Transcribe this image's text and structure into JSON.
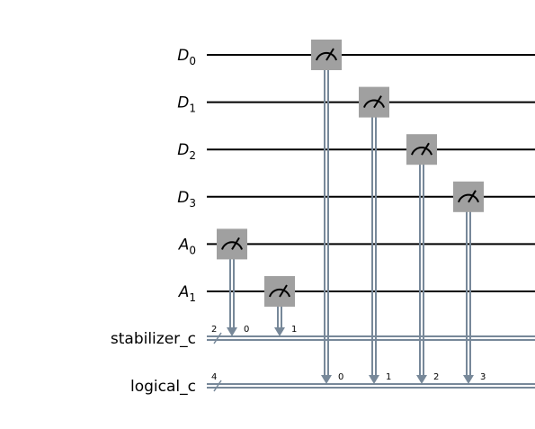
{
  "quantum_wires": [
    {
      "name": "D",
      "index": "0"
    },
    {
      "name": "D",
      "index": "1"
    },
    {
      "name": "D",
      "index": "2"
    },
    {
      "name": "D",
      "index": "3"
    },
    {
      "name": "A",
      "index": "0"
    },
    {
      "name": "A",
      "index": "1"
    }
  ],
  "classical_registers": [
    {
      "name": "stabilizer_c",
      "size": "2"
    },
    {
      "name": "logical_c",
      "size": "4"
    }
  ],
  "measurements": [
    {
      "qubit": 4,
      "register": 0,
      "bit": "0"
    },
    {
      "qubit": 5,
      "register": 0,
      "bit": "1"
    },
    {
      "qubit": 0,
      "register": 1,
      "bit": "0"
    },
    {
      "qubit": 1,
      "register": 1,
      "bit": "1"
    },
    {
      "qubit": 2,
      "register": 1,
      "bit": "2"
    },
    {
      "qubit": 3,
      "register": 1,
      "bit": "3"
    }
  ],
  "colors": {
    "wire": "#000000",
    "classical_wire": "#778899",
    "gate_fill": "#a0a0a0",
    "gate_symbol": "#000000"
  }
}
